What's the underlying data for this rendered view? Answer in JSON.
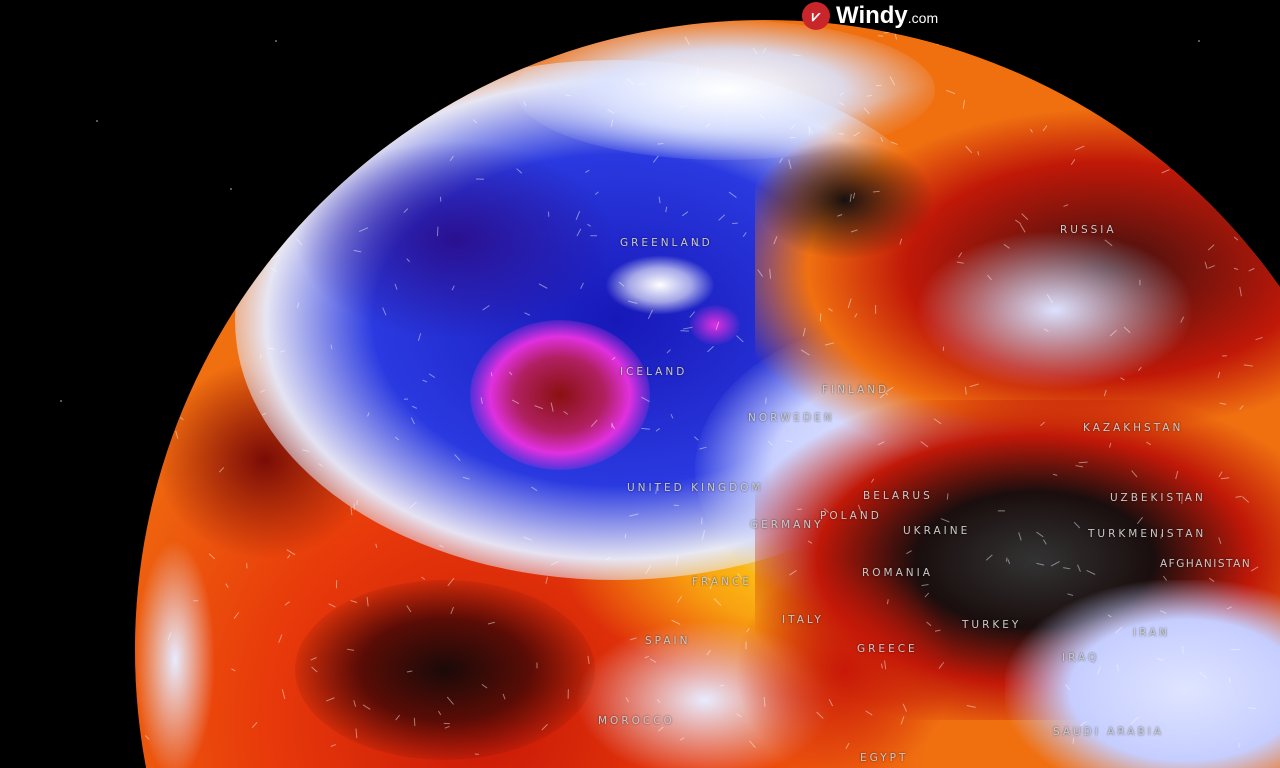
{
  "logo": {
    "name": "Windy",
    "suffix": ".com",
    "icon": "windy-logo-icon"
  },
  "colors": {
    "cold_blue": "#1f2fd0",
    "pale": "#e8ecff",
    "yellow": "#ffe21a",
    "orange": "#f07010",
    "red": "#d01808",
    "dark": "#2a1a1a",
    "magenta": "#e030e0"
  },
  "labels": {
    "greenland": "GREENLAND",
    "iceland": "ICELAND",
    "russia": "RUSSIA",
    "finland": "FINLAND",
    "norway_sweden": "NORWEDEN",
    "united_kingdom": "UNITED KINGDOM",
    "belarus": "BELARUS",
    "poland": "POLAND",
    "germany": "GERMANY",
    "ukraine": "UKRAINE",
    "kazakhstan": "KAZAKHSTAN",
    "uzbekistan": "UZBEKISTAN",
    "turkmenistan": "TURKMENISTAN",
    "afghanistan": "AFGHANISTAN",
    "france": "FRANCE",
    "romania": "ROMANIA",
    "italy": "ITALY",
    "spain": "SPAIN",
    "turkey": "TURKEY",
    "greece": "GREECE",
    "iran": "IRAN",
    "iraq": "IRAQ",
    "morocco": "MOROCCO",
    "saudi_arabia": "SAUDI ARABIA",
    "egypt": "EGYPT"
  }
}
